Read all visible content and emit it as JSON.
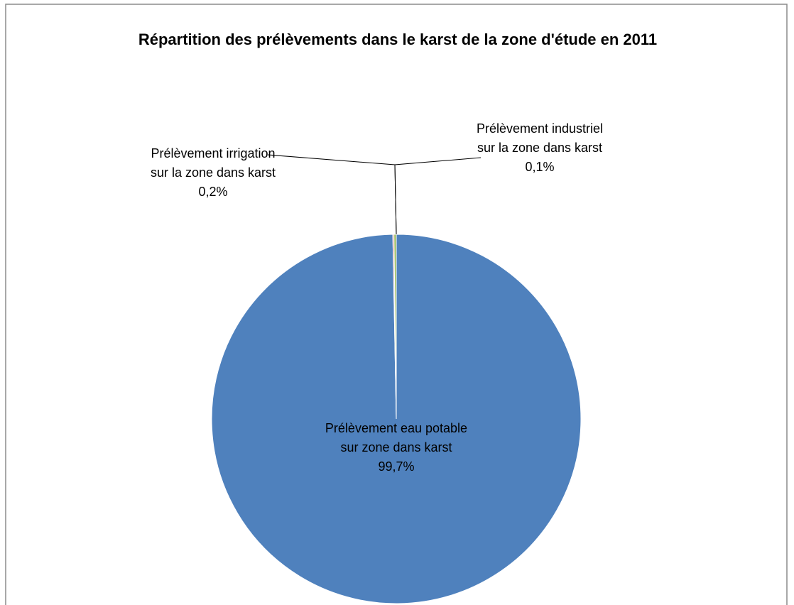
{
  "chart_data": {
    "type": "pie",
    "title": "Répartition des prélèvements dans le karst de la zone d'étude en 2011",
    "categories": [
      "Prélèvement eau potable sur zone dans karst",
      "Prélèvement industriel sur la zone dans karst",
      "Prélèvement irrigation sur la zone dans karst"
    ],
    "values": [
      99.7,
      0.1,
      0.2
    ],
    "value_labels": [
      "99,7%",
      "0,1%",
      "0,2%"
    ],
    "colors": [
      "#4f81bd",
      "#c0504d",
      "#9bbb59"
    ]
  }
}
